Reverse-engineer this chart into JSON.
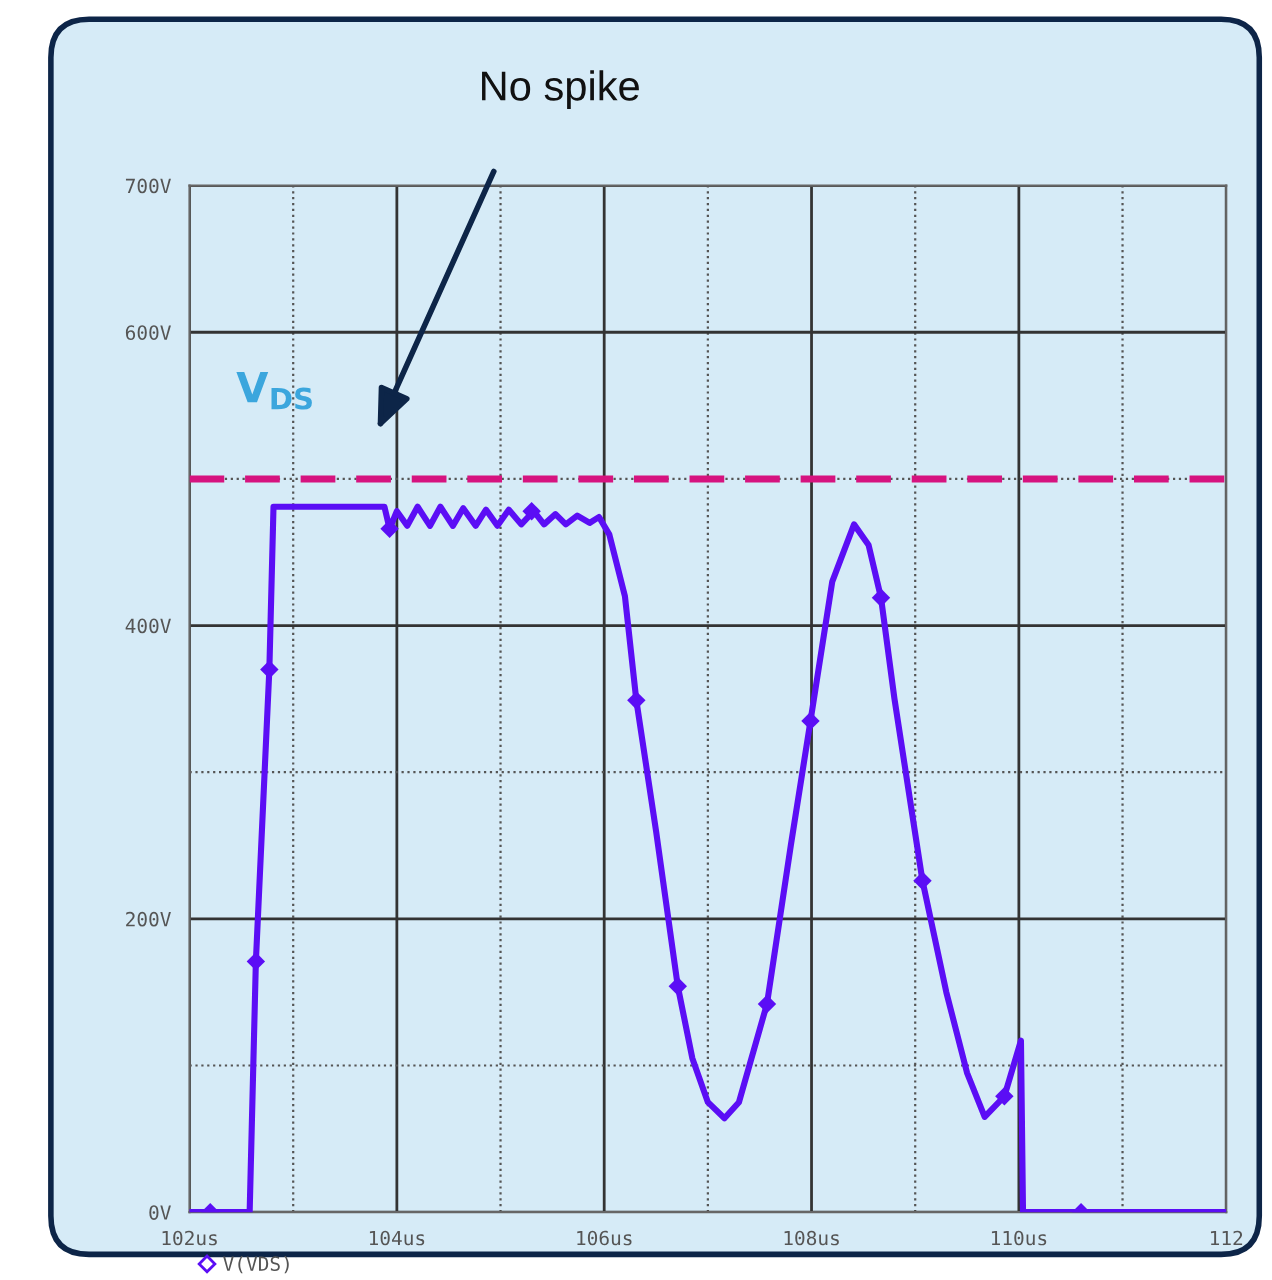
{
  "chart_data": {
    "type": "line",
    "annotations": [
      "No spike",
      "V$_{DS}$"
    ],
    "xlim": [
      102,
      112
    ],
    "ylim": [
      0,
      700
    ],
    "xticks": [
      {
        "value": 102,
        "label": "102us"
      },
      {
        "value": 103,
        "label": null
      },
      {
        "value": 104,
        "label": "104us"
      },
      {
        "value": 105,
        "label": null
      },
      {
        "value": 106,
        "label": "106us"
      },
      {
        "value": 107,
        "label": null
      },
      {
        "value": 108,
        "label": "108us"
      },
      {
        "value": 109,
        "label": null
      },
      {
        "value": 110,
        "label": "110us"
      },
      {
        "value": 111,
        "label": null
      },
      {
        "value": 112,
        "label": "112"
      }
    ],
    "yticks": [
      {
        "value": 0,
        "label": "0V"
      },
      {
        "value": 100,
        "label": null
      },
      {
        "value": 200,
        "label": "200V"
      },
      {
        "value": 300,
        "label": null
      },
      {
        "value": 400,
        "label": "400V"
      },
      {
        "value": 500,
        "label": null
      },
      {
        "value": 600,
        "label": "600V"
      },
      {
        "value": 700,
        "label": "700V"
      }
    ],
    "grid": true,
    "legend": "bottom left",
    "line_style": "solid",
    "ref_lines": [
      {
        "axis": "y",
        "value": 500,
        "label": null,
        "color": "#d6137f",
        "line_style": "dashed"
      }
    ],
    "series": [
      {
        "name": "V(VDS)",
        "color": "#5b0ef5",
        "marker": "none",
        "x": [
          102,
          102.58,
          102.64,
          102.77,
          102.81,
          103.88,
          103.93,
          104.0,
          104.1,
          104.2,
          104.32,
          104.42,
          104.54,
          104.64,
          104.76,
          104.86,
          104.97,
          105.08,
          105.2,
          105.32,
          105.42,
          105.53,
          105.63,
          105.74,
          105.86,
          105.95,
          106.05,
          106.2,
          106.31,
          106.5,
          106.71,
          106.85,
          107.0,
          107.16,
          107.3,
          107.57,
          107.8,
          107.99,
          108.2,
          108.41,
          108.55,
          108.67,
          108.8,
          109.07,
          109.3,
          109.5,
          109.67,
          109.86,
          110.02,
          110.04,
          112
        ],
        "values": [
          0,
          0,
          171,
          370,
          481,
          481,
          466,
          478,
          468,
          481,
          468,
          481,
          468,
          480,
          468,
          479,
          468,
          479,
          469,
          478,
          469,
          476,
          469,
          475,
          470,
          474,
          462,
          420,
          349,
          260,
          154,
          105,
          75,
          64,
          75,
          142,
          250,
          335,
          430,
          469,
          455,
          419,
          350,
          226,
          150,
          95,
          65,
          79,
          117,
          0,
          0
        ]
      },
      {
        "type": "scatter",
        "color": "#5b0ef5",
        "marker": "diamond",
        "x": [
          102.2,
          102.64,
          102.77,
          103.93,
          105.3,
          106.31,
          106.71,
          107.57,
          107.99,
          108.67,
          109.07,
          109.86,
          110.6
        ],
        "values": [
          0,
          171,
          370,
          466,
          478,
          349,
          154,
          142,
          335,
          419,
          226,
          79,
          0
        ]
      }
    ]
  }
}
